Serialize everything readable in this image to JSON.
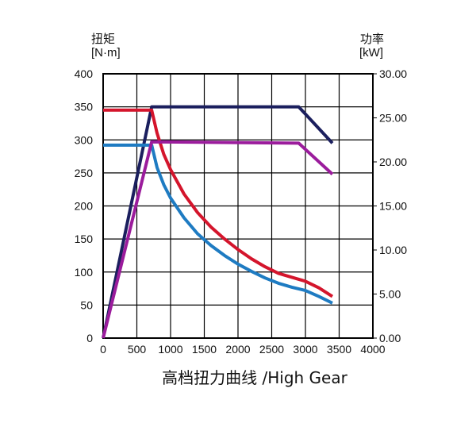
{
  "chart_data": {
    "type": "line",
    "title": "高档扭力曲线 /High Gear",
    "left_axis": {
      "label": "扭矩",
      "unit": "[N·m]",
      "ylim": [
        0,
        400
      ],
      "ticks": [
        "0",
        "50",
        "100",
        "150",
        "200",
        "250",
        "300",
        "350",
        "400"
      ]
    },
    "right_axis": {
      "label": "功率",
      "unit": "[kW]",
      "ylim": [
        0,
        30
      ],
      "ticks": [
        "0.00",
        "5.00",
        "10.00",
        "15.00",
        "20.00",
        "25.00",
        "30.00"
      ]
    },
    "xlim": [
      0,
      4000
    ],
    "x_ticks": [
      "0",
      "500",
      "1000",
      "1500",
      "2000",
      "2500",
      "3000",
      "3500",
      "4000"
    ],
    "grid": true,
    "series": [
      {
        "color": "#1b1f5e",
        "axis": "left",
        "x": [
          0,
          720,
          2900,
          3400
        ],
        "values": [
          0,
          350,
          350,
          295
        ]
      },
      {
        "color": "#d4152c",
        "axis": "left",
        "x": [
          0,
          720,
          800,
          900,
          1000,
          1200,
          1400,
          1600,
          1800,
          2000,
          2200,
          2400,
          2600,
          2800,
          3000,
          3200,
          3400
        ],
        "values": [
          345,
          345,
          310,
          278,
          255,
          218,
          190,
          168,
          150,
          134,
          120,
          108,
          98,
          92,
          86,
          76,
          63
        ]
      },
      {
        "color": "#1e7bc2",
        "axis": "left",
        "x": [
          0,
          720,
          800,
          900,
          1000,
          1200,
          1400,
          1600,
          1800,
          2000,
          2200,
          2400,
          2600,
          2800,
          3000,
          3200,
          3400
        ],
        "values": [
          292,
          292,
          258,
          232,
          212,
          182,
          158,
          140,
          125,
          112,
          101,
          91,
          83,
          77,
          72,
          63,
          53
        ]
      },
      {
        "color": "#9b1c9c",
        "axis": "left",
        "x": [
          0,
          720,
          2900,
          3400
        ],
        "values": [
          0,
          297,
          295,
          248
        ]
      }
    ]
  }
}
